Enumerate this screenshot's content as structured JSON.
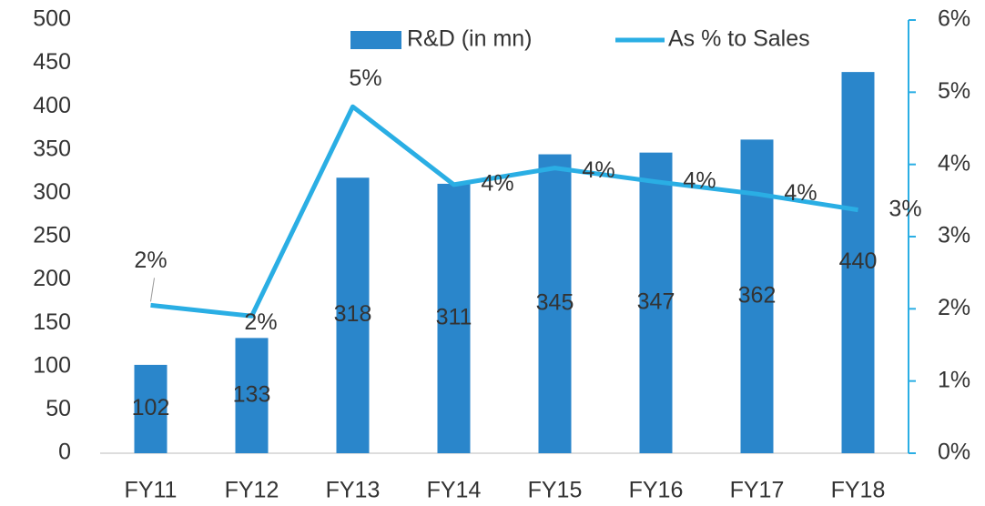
{
  "chart_data": {
    "type": "bar_line",
    "categories": [
      "FY11",
      "FY12",
      "FY13",
      "FY14",
      "FY15",
      "FY16",
      "FY17",
      "FY18"
    ],
    "series": [
      {
        "name": "R&D (in mn)",
        "type": "bar",
        "color": "#2a86cb",
        "values": [
          102,
          133,
          318,
          311,
          345,
          347,
          362,
          440
        ]
      },
      {
        "name": "As % to Sales",
        "type": "line",
        "axis": "y2",
        "color": "#2aaee4",
        "values": [
          2.05,
          1.9,
          4.8,
          3.72,
          3.95,
          3.76,
          3.59,
          3.37
        ],
        "value_labels": [
          "2%",
          "2%",
          "5%",
          "4%",
          "4%",
          "4%",
          "4%",
          "3%"
        ]
      }
    ],
    "ylim": [
      0,
      500
    ],
    "yticks": [
      0,
      50,
      100,
      150,
      200,
      250,
      300,
      350,
      400,
      450,
      500
    ],
    "y2lim": [
      0,
      6
    ],
    "y2ticks": [
      {
        "value": 0,
        "label": "0%"
      },
      {
        "value": 1,
        "label": "1%"
      },
      {
        "value": 2,
        "label": "2%"
      },
      {
        "value": 3,
        "label": "3%"
      },
      {
        "value": 4,
        "label": "4%"
      },
      {
        "value": 5,
        "label": "5%"
      },
      {
        "value": 6,
        "label": "6%"
      }
    ],
    "legend": "top"
  }
}
